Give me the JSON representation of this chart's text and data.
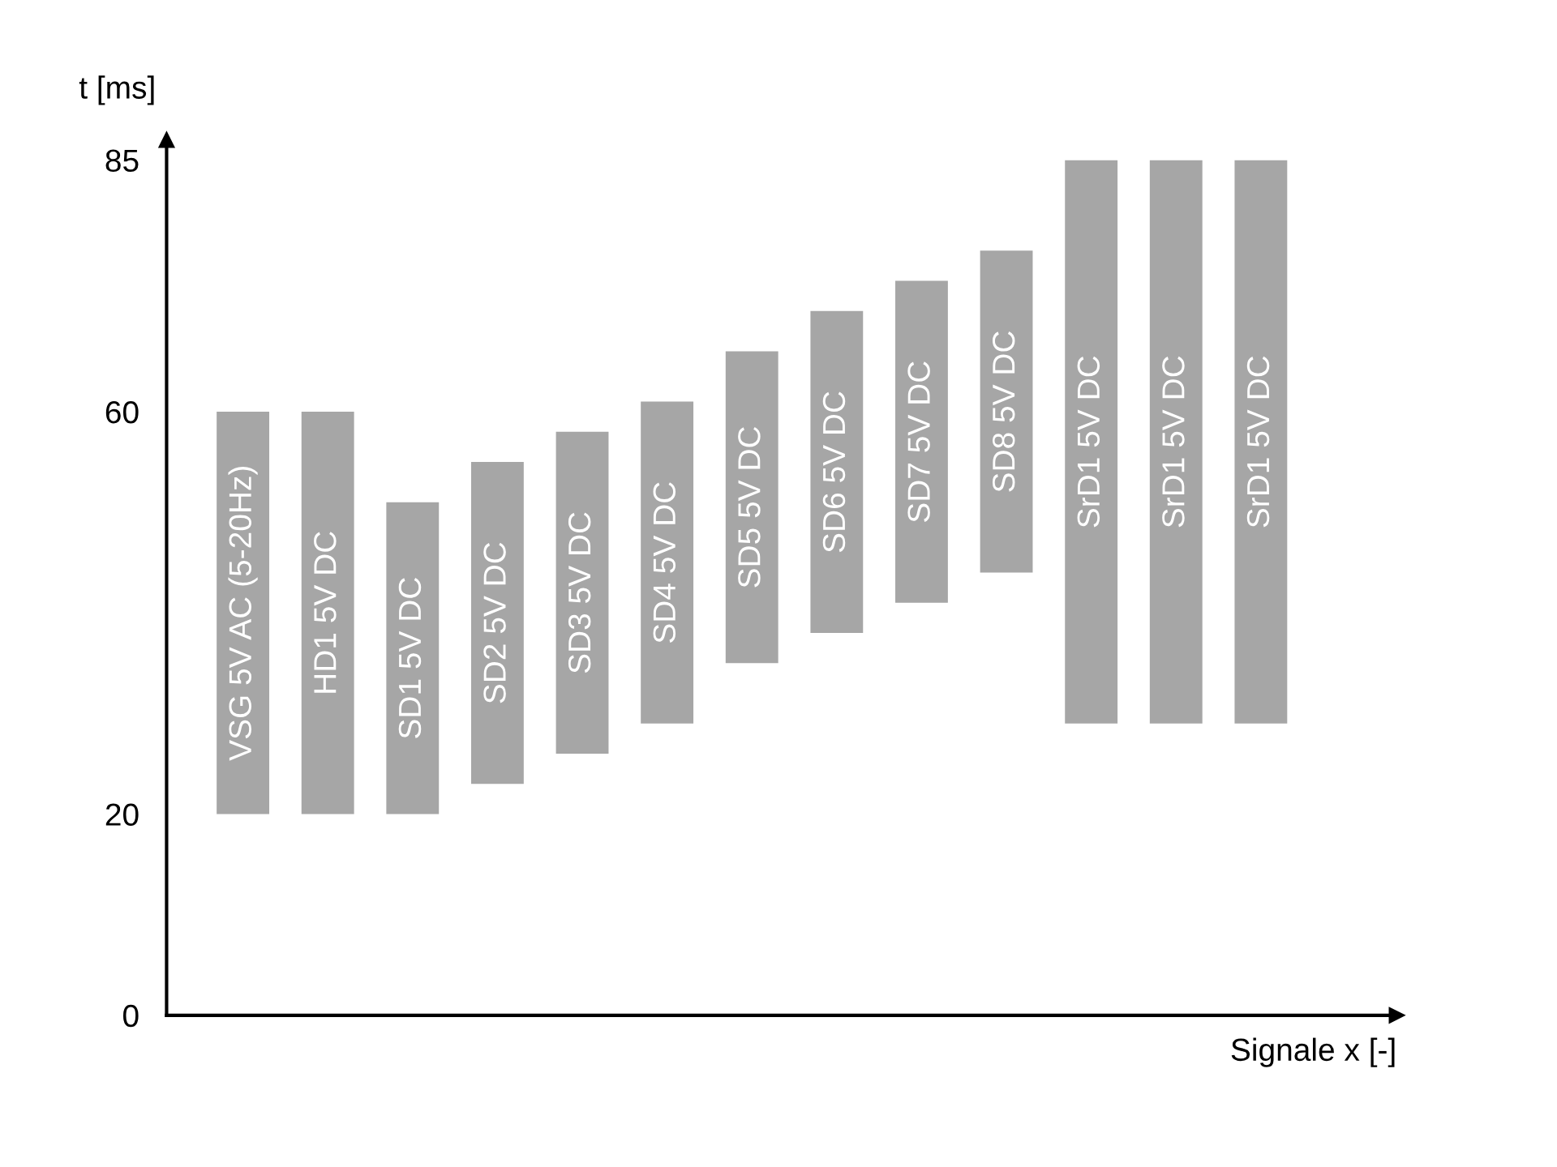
{
  "chart_data": {
    "type": "bar",
    "xlabel": "Signale x [-]",
    "ylabel": "t [ms]",
    "categories": [
      "VSG 5V AC (5-20Hz)",
      "HD1 5V DC",
      "SD1 5V DC",
      "SD2 5V DC",
      "SD3 5V DC",
      "SD4 5V DC",
      "SD5 5V DC",
      "SD6 5V DC",
      "SD7 5V DC",
      "SD8 5V DC",
      "SrD1 5V DC",
      "SrD1 5V DC",
      "SrD1 5V DC"
    ],
    "base": [
      20,
      20,
      20,
      23,
      26,
      29,
      35,
      38,
      41,
      44,
      29,
      29,
      29
    ],
    "values": [
      40,
      40,
      31,
      32,
      32,
      32,
      31,
      32,
      32,
      32,
      56,
      56,
      56
    ],
    "color": "#a6a6a6",
    "ylim": [
      0,
      87
    ],
    "yticks": [
      0,
      20,
      60,
      85
    ],
    "grid": false,
    "legend": false
  }
}
